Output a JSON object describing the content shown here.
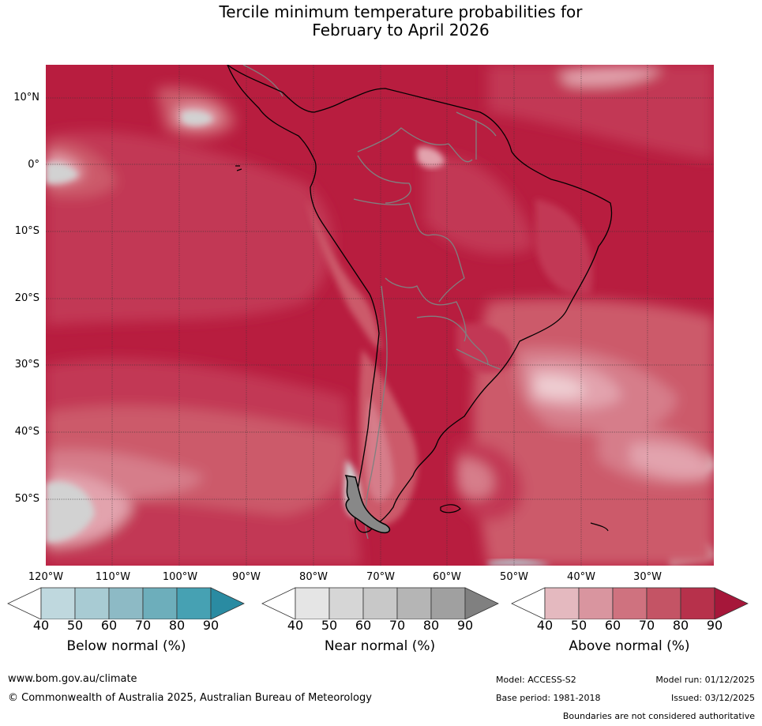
{
  "title_line1": "Tercile minimum temperature probabilities for",
  "title_line2": "February to April 2026",
  "map": {
    "lat_labels": [
      "10°N",
      "0°",
      "10°S",
      "20°S",
      "30°S",
      "40°S",
      "50°S"
    ],
    "lon_labels": [
      "120°W",
      "110°W",
      "100°W",
      "90°W",
      "80°W",
      "70°W",
      "60°W",
      "50°W",
      "40°W",
      "30°W"
    ],
    "colors": {
      "above_90": "#b11a3b",
      "above_80": "#c0344f",
      "above_70": "#cc5a6a",
      "above_60": "#d67d8a",
      "above_50": "#e2a3ad",
      "above_40": "#eecdd2",
      "near": "#d2d2d2",
      "below": "#b3d0d8"
    }
  },
  "colorbars": [
    {
      "label": "Below normal (%)",
      "ticks": [
        "40",
        "50",
        "60",
        "70",
        "80",
        "90"
      ],
      "colors": [
        "#bfd8de",
        "#a8cbd3",
        "#8dbac5",
        "#6daebb",
        "#46a1b3",
        "#2a8ba2"
      ]
    },
    {
      "label": "Near normal (%)",
      "ticks": [
        "40",
        "50",
        "60",
        "70",
        "80",
        "90"
      ],
      "colors": [
        "#e5e5e5",
        "#d6d6d6",
        "#c8c8c8",
        "#b5b5b5",
        "#a0a0a0",
        "#808080"
      ]
    },
    {
      "label": "Above normal (%)",
      "ticks": [
        "40",
        "50",
        "60",
        "70",
        "80",
        "90"
      ],
      "colors": [
        "#e4b9bf",
        "#d9959f",
        "#cf727f",
        "#c45465",
        "#b7314b",
        "#a6173a"
      ]
    }
  ],
  "footer": {
    "website": "www.bom.gov.au/climate",
    "copyright": "© Commonwealth of Australia 2025, Australian Bureau of Meteorology",
    "model": "Model: ACCESS-S2",
    "base_period": "Base period: 1981-2018",
    "model_run": "Model run: 01/12/2025",
    "issued": "Issued: 03/12/2025",
    "disclaimer": "Boundaries are not considered authoritative"
  }
}
